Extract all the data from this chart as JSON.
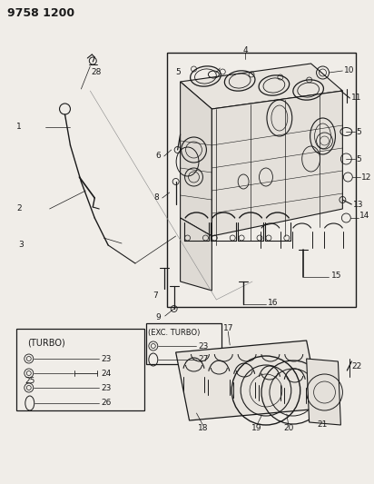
{
  "title": "9758 1200",
  "bg_color": "#f0ede8",
  "fg_color": "#1a1a1a",
  "white": "#f0ede8",
  "figw": 4.12,
  "figh": 5.33,
  "dpi": 100,
  "label_fs": 6.5,
  "title_fs": 9
}
